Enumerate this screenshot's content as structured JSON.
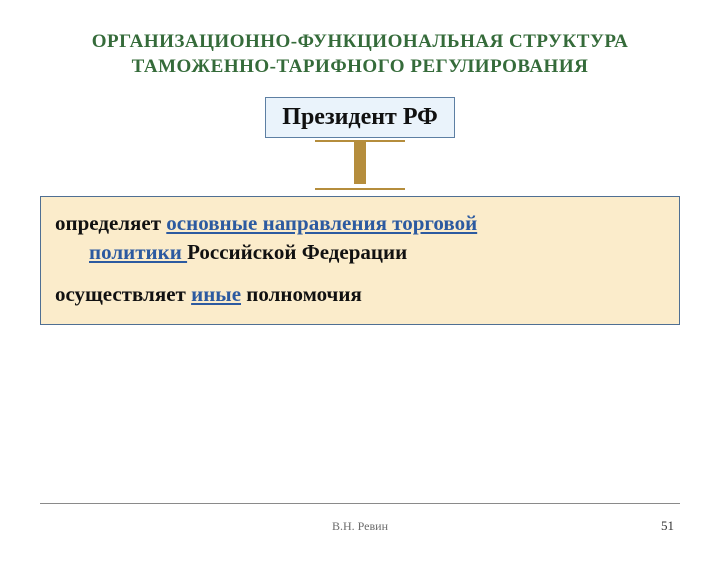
{
  "title": {
    "line1": "ОРГАНИЗАЦИОННО-ФУНКЦИОНАЛЬНАЯ СТРУКТУРА",
    "line2": "ТАМОЖЕННО-ТАРИФНОГО РЕГУЛИРОВАНИЯ",
    "color": "#356b3a",
    "fontsize": 19,
    "margin_top": 30
  },
  "president_box": {
    "label": "Президент РФ",
    "bg": "#eaf3fb",
    "border": "#5d7fa3",
    "text_color": "#111111",
    "fontsize": 24
  },
  "connector": {
    "bar_color": "#b58d3c",
    "stem_color": "#b58d3c"
  },
  "content_box": {
    "bg": "#fbeccb",
    "border": "#4f6f93",
    "text_color": "#111111",
    "link_color": "#2c5aa0",
    "fontsize": 21,
    "line1_prefix": "определяет ",
    "line1_link": "основные направления торговой",
    "line1_link_cont": "политики ",
    "line1_suffix": "Российской Федерации",
    "line2_prefix": "осуществляет ",
    "line2_link": "иные",
    "line2_suffix": " полномочия"
  },
  "footer": {
    "author": "В.Н. Ревин",
    "author_fontsize": 12,
    "page": "51",
    "page_fontsize": 13
  }
}
